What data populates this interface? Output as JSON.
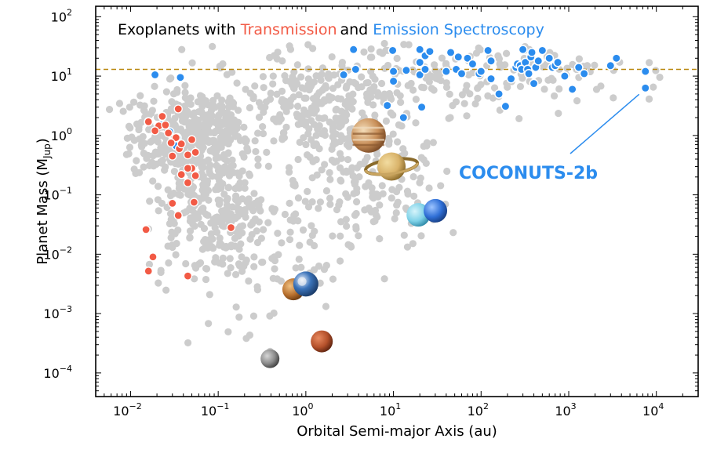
{
  "chart_data": {
    "type": "scatter",
    "title": {
      "prefix": "Exoplanets with ",
      "transmission": "Transmission",
      "middle": "and",
      "emission": "Emission Spectroscopy"
    },
    "xlabel": "Orbital Semi-major Axis (au)",
    "ylabel": {
      "main": "Planet Mass (M",
      "sub": "Jup",
      "close": ")"
    },
    "x_scale": "log",
    "y_scale": "log",
    "xlim": [
      0.004,
      30000
    ],
    "ylim": [
      4e-05,
      150
    ],
    "x_ticks": [
      {
        "base": "10",
        "exp": "−2",
        "value": 0.01
      },
      {
        "base": "10",
        "exp": "−1",
        "value": 0.1
      },
      {
        "base": "10",
        "exp": "0",
        "value": 1
      },
      {
        "base": "10",
        "exp": "1",
        "value": 10
      },
      {
        "base": "10",
        "exp": "2",
        "value": 100
      },
      {
        "base": "10",
        "exp": "3",
        "value": 1000
      },
      {
        "base": "10",
        "exp": "4",
        "value": 10000
      }
    ],
    "y_ticks": [
      {
        "base": "10",
        "exp": "−4",
        "value": 0.0001
      },
      {
        "base": "10",
        "exp": "−3",
        "value": 0.001
      },
      {
        "base": "10",
        "exp": "−2",
        "value": 0.01
      },
      {
        "base": "10",
        "exp": "−1",
        "value": 0.1
      },
      {
        "base": "10",
        "exp": "0",
        "value": 1
      },
      {
        "base": "10",
        "exp": "1",
        "value": 10
      },
      {
        "base": "10",
        "exp": "2",
        "value": 100
      }
    ],
    "deuterium_limit_mass": 13,
    "callout": {
      "text": "COCONUTS-2b",
      "target": [
        7500,
        6.3
      ]
    },
    "colors": {
      "background_planets": "#cccccc",
      "transmission": "#f25a45",
      "emission": "#2b8cee",
      "limit_line": "#b8860b",
      "jupiter": "#c9905a",
      "saturn": "#d9b36a",
      "uranus": "#7fd2e8",
      "neptune": "#2f6fd6",
      "earth": "#3b73b9",
      "venus": "#b8702e",
      "mars": "#b5512b",
      "mercury": "#8a8a8a"
    },
    "series": [
      {
        "name": "Emission Spectroscopy",
        "points": [
          [
            0.016,
            1.7
          ],
          [
            0.023,
            2.1
          ],
          [
            0.033,
            0.67
          ],
          [
            0.015,
            0.026
          ],
          [
            0.034,
            0.92
          ],
          [
            0.028,
            1.15
          ],
          [
            0.022,
            1.5
          ],
          [
            0.019,
            10.5
          ],
          [
            0.037,
            9.5
          ],
          [
            3.5,
            28
          ],
          [
            3.7,
            13
          ],
          [
            2.7,
            10.5
          ],
          [
            9.8,
            27
          ],
          [
            10,
            12
          ],
          [
            10,
            8.2
          ],
          [
            8.5,
            3.2
          ],
          [
            13,
            2
          ],
          [
            14,
            12.5
          ],
          [
            20,
            17
          ],
          [
            20,
            28
          ],
          [
            20,
            10.5
          ],
          [
            23,
            13
          ],
          [
            23,
            22
          ],
          [
            26,
            26
          ],
          [
            21,
            3
          ],
          [
            40,
            12
          ],
          [
            45,
            25
          ],
          [
            52,
            13
          ],
          [
            55,
            21
          ],
          [
            60,
            11
          ],
          [
            70,
            20
          ],
          [
            80,
            16
          ],
          [
            95,
            11
          ],
          [
            100,
            12
          ],
          [
            120,
            27
          ],
          [
            130,
            18
          ],
          [
            130,
            9
          ],
          [
            160,
            5
          ],
          [
            190,
            3.1
          ],
          [
            220,
            9
          ],
          [
            250,
            14
          ],
          [
            260,
            16
          ],
          [
            280,
            15
          ],
          [
            290,
            13
          ],
          [
            300,
            28
          ],
          [
            320,
            17
          ],
          [
            340,
            13
          ],
          [
            350,
            11
          ],
          [
            370,
            21
          ],
          [
            380,
            25
          ],
          [
            400,
            7.5
          ],
          [
            420,
            14
          ],
          [
            450,
            18
          ],
          [
            500,
            27
          ],
          [
            600,
            20
          ],
          [
            650,
            14
          ],
          [
            700,
            15
          ],
          [
            750,
            17
          ],
          [
            900,
            10
          ],
          [
            1100,
            6
          ],
          [
            1300,
            14
          ],
          [
            1500,
            11
          ],
          [
            3000,
            15
          ],
          [
            3500,
            20
          ],
          [
            7500,
            12
          ],
          [
            7500,
            6.3
          ]
        ]
      },
      {
        "name": "Transmission Spectroscopy",
        "points": [
          [
            0.016,
            1.7
          ],
          [
            0.021,
            1.45
          ],
          [
            0.019,
            1.2
          ],
          [
            0.025,
            1.5
          ],
          [
            0.023,
            2.1
          ],
          [
            0.027,
            1.1
          ],
          [
            0.035,
            2.8
          ],
          [
            0.033,
            0.92
          ],
          [
            0.036,
            0.6
          ],
          [
            0.038,
            0.72
          ],
          [
            0.029,
            0.75
          ],
          [
            0.05,
            0.85
          ],
          [
            0.055,
            0.52
          ],
          [
            0.045,
            0.47
          ],
          [
            0.03,
            0.45
          ],
          [
            0.05,
            0.28
          ],
          [
            0.045,
            0.28
          ],
          [
            0.038,
            0.22
          ],
          [
            0.055,
            0.21
          ],
          [
            0.045,
            0.16
          ],
          [
            0.03,
            0.072
          ],
          [
            0.053,
            0.075
          ],
          [
            0.035,
            0.045
          ],
          [
            0.14,
            0.028
          ],
          [
            0.018,
            0.009
          ],
          [
            0.016,
            0.0052
          ],
          [
            0.045,
            0.0043
          ],
          [
            0.015,
            0.026
          ]
        ]
      }
    ],
    "solar_system": [
      {
        "name": "Mercury",
        "a": 0.39,
        "m": 0.000174
      },
      {
        "name": "Venus",
        "a": 0.72,
        "m": 0.00256
      },
      {
        "name": "Earth",
        "a": 1.0,
        "m": 0.00315
      },
      {
        "name": "Mars",
        "a": 1.52,
        "m": 0.00034
      },
      {
        "name": "Jupiter",
        "a": 5.2,
        "m": 1.0
      },
      {
        "name": "Saturn",
        "a": 9.5,
        "m": 0.3
      },
      {
        "name": "Uranus",
        "a": 19.2,
        "m": 0.046
      },
      {
        "name": "Neptune",
        "a": 30.1,
        "m": 0.054
      }
    ]
  }
}
